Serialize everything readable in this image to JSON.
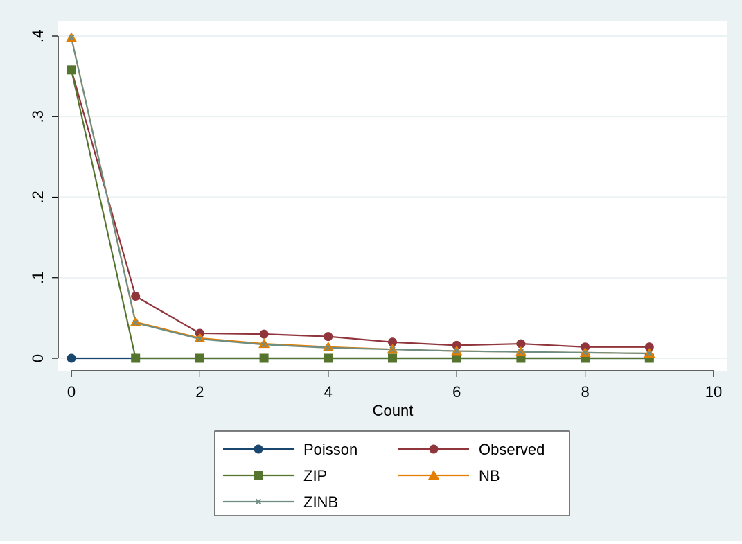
{
  "chart_data": {
    "type": "line",
    "title": "",
    "xlabel": "Count",
    "ylabel": "",
    "xlim": [
      0,
      10
    ],
    "ylim": [
      0,
      0.4
    ],
    "x_ticks": [
      0,
      2,
      4,
      6,
      8,
      10
    ],
    "x_tick_labels": [
      "0",
      "2",
      "4",
      "6",
      "8",
      "10"
    ],
    "y_ticks": [
      0,
      0.1,
      0.2,
      0.3,
      0.4
    ],
    "y_tick_labels": [
      "0",
      ".1",
      ".2",
      ".3",
      ".4"
    ],
    "grid": true,
    "legend_position": "bottom",
    "colors": {
      "outer_background": "#EAF2F3",
      "plot_background": "#FFFFFF",
      "gridline": "#EAF2F3"
    },
    "series": [
      {
        "name": "Poisson",
        "color": "#1A476F",
        "marker": "circle",
        "x": [
          0,
          1,
          2,
          3,
          4,
          5,
          6,
          7,
          8,
          9
        ],
        "y": [
          0,
          0,
          0,
          0,
          0,
          0,
          0,
          0,
          0,
          0
        ]
      },
      {
        "name": "Observed",
        "color": "#90353B",
        "marker": "circle",
        "x": [
          0,
          1,
          2,
          3,
          4,
          5,
          6,
          7,
          8,
          9
        ],
        "y": [
          0.358,
          0.077,
          0.031,
          0.03,
          0.027,
          0.02,
          0.016,
          0.018,
          0.014,
          0.014
        ]
      },
      {
        "name": "ZIP",
        "color": "#55752F",
        "marker": "square",
        "x": [
          0,
          1,
          2,
          3,
          4,
          5,
          6,
          7,
          8,
          9
        ],
        "y": [
          0.358,
          0,
          0,
          0,
          0,
          0,
          0,
          0,
          0,
          0
        ]
      },
      {
        "name": "NB",
        "color": "#E37E00",
        "marker": "triangle",
        "x": [
          0,
          1,
          2,
          3,
          4,
          5,
          6,
          7,
          8,
          9
        ],
        "y": [
          0.398,
          0.045,
          0.025,
          0.018,
          0.014,
          0.011,
          0.009,
          0.008,
          0.007,
          0.006
        ]
      },
      {
        "name": "ZINB",
        "color": "#6E8E84",
        "marker": "x",
        "x": [
          0,
          1,
          2,
          3,
          4,
          5,
          6,
          7,
          8,
          9
        ],
        "y": [
          0.398,
          0.044,
          0.024,
          0.017,
          0.013,
          0.011,
          0.009,
          0.008,
          0.007,
          0.006
        ]
      }
    ]
  }
}
